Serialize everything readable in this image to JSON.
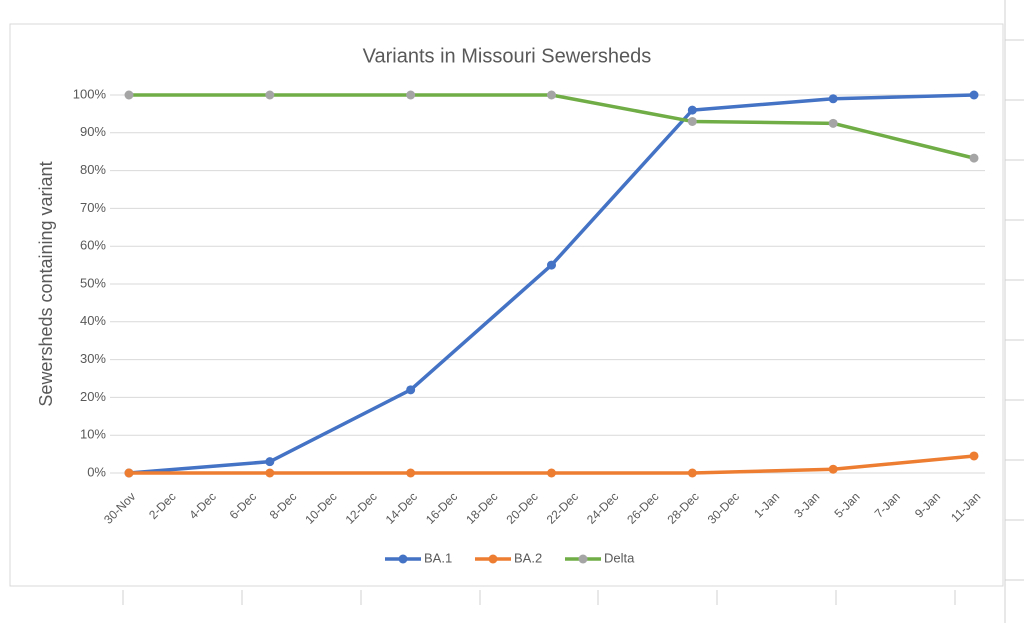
{
  "chart_data": {
    "type": "line",
    "title": "Variants in Missouri Sewersheds",
    "y_label": "Sewersheds containing variant",
    "x": [
      "30-Nov",
      "7-Dec",
      "14-Dec",
      "21-Dec",
      "28-Dec",
      "4-Jan",
      "11-Jan"
    ],
    "xticks": [
      "30-Nov",
      "2-Dec",
      "4-Dec",
      "6-Dec",
      "8-Dec",
      "10-Dec",
      "12-Dec",
      "14-Dec",
      "16-Dec",
      "18-Dec",
      "20-Dec",
      "22-Dec",
      "24-Dec",
      "26-Dec",
      "28-Dec",
      "30-Dec",
      "1-Jan",
      "3-Jan",
      "5-Jan",
      "7-Jan",
      "9-Jan",
      "11-Jan"
    ],
    "ylim": [
      0,
      100
    ],
    "yticks": [
      {
        "value": 0,
        "label": "0%"
      },
      {
        "value": 10,
        "label": "10%"
      },
      {
        "value": 20,
        "label": "20%"
      },
      {
        "value": 30,
        "label": "30%"
      },
      {
        "value": 40,
        "label": "40%"
      },
      {
        "value": 50,
        "label": "50%"
      },
      {
        "value": 60,
        "label": "60%"
      },
      {
        "value": 70,
        "label": "70%"
      },
      {
        "value": 80,
        "label": "80%"
      },
      {
        "value": 90,
        "label": "90%"
      },
      {
        "value": 100,
        "label": "100%"
      }
    ],
    "grid": true,
    "legend": "bottom",
    "series": [
      {
        "name": "BA.1",
        "color": "#4472c4",
        "values": [
          0,
          3,
          22,
          55,
          96,
          99,
          100
        ]
      },
      {
        "name": "BA.2",
        "color": "#ed7d31",
        "values": [
          0,
          0,
          0,
          0,
          0,
          1,
          4.5
        ]
      },
      {
        "name": "Delta",
        "color": "#70ad47",
        "marker_color": "#a5a5a5",
        "values": [
          100,
          100,
          100,
          100,
          93,
          92.5,
          83.3
        ]
      }
    ]
  }
}
